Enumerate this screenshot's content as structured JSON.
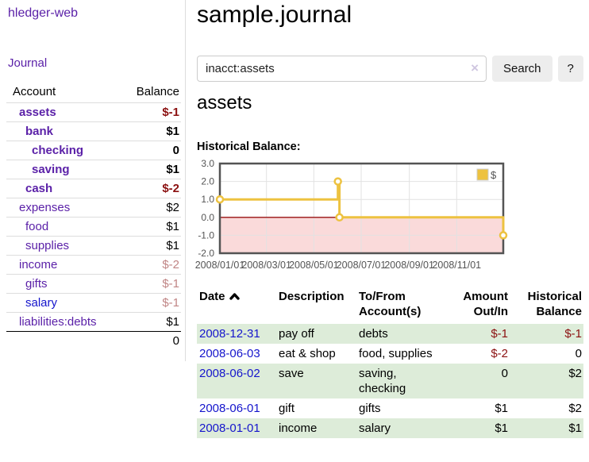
{
  "app": {
    "title": "hledger-web"
  },
  "sidebar": {
    "journal_label": "Journal",
    "accounts": {
      "header_account": "Account",
      "header_balance": "Balance",
      "rows": [
        {
          "name": "assets",
          "depth": 1,
          "in_query": true,
          "balance": "$-1",
          "balance_class": "neg"
        },
        {
          "name": "bank",
          "depth": 2,
          "in_query": true,
          "balance": "$1",
          "balance_class": ""
        },
        {
          "name": "checking",
          "depth": 3,
          "in_query": true,
          "balance": "0",
          "balance_class": ""
        },
        {
          "name": "saving",
          "depth": 3,
          "in_query": true,
          "balance": "$1",
          "balance_class": ""
        },
        {
          "name": "cash",
          "depth": 2,
          "in_query": true,
          "balance": "$-2",
          "balance_class": "neg"
        },
        {
          "name": "expenses",
          "depth": 1,
          "in_query": false,
          "balance": "$2",
          "balance_class": ""
        },
        {
          "name": "food",
          "depth": 2,
          "in_query": false,
          "balance": "$1",
          "balance_class": ""
        },
        {
          "name": "supplies",
          "depth": 2,
          "in_query": false,
          "balance": "$1",
          "balance_class": ""
        },
        {
          "name": "income",
          "depth": 1,
          "in_query": false,
          "balance": "$-2",
          "balance_class": "negfaded"
        },
        {
          "name": "gifts",
          "depth": 2,
          "in_query": false,
          "balance": "$-1",
          "balance_class": "negfaded"
        },
        {
          "name": "salary",
          "depth": 2,
          "in_query": false,
          "balance": "$-1",
          "balance_class": "negfaded",
          "link_color": "blue"
        },
        {
          "name": "liabilities:debts",
          "depth": 1,
          "in_query": false,
          "balance": "$1",
          "balance_class": ""
        }
      ],
      "total": "0"
    }
  },
  "header": {
    "title": "sample.journal"
  },
  "search": {
    "value": "inacct:assets",
    "clear_icon": "×",
    "button_label": "Search",
    "help_label": "?"
  },
  "main": {
    "account_heading": "assets",
    "chart_label": "Historical Balance:"
  },
  "chart_data": {
    "type": "line",
    "step": true,
    "series": [
      {
        "name": "$",
        "color": "#edc240",
        "points": [
          [
            "2008-01-01",
            1
          ],
          [
            "2008-06-01",
            2
          ],
          [
            "2008-06-03",
            0
          ],
          [
            "2008-12-31",
            -1
          ]
        ]
      }
    ],
    "ylim": [
      -2.0,
      3.0
    ],
    "ytick_labels": [
      "3.0",
      "2.0",
      "1.0",
      "0.0",
      "-1.0",
      "-2.0"
    ],
    "xtick_labels": [
      "2008/01/01",
      "2008/03/01",
      "2008/05/01",
      "2008/07/01",
      "2008/09/01",
      "2008/11/01"
    ],
    "xrange": [
      "2008-01-01",
      "2008-12-31"
    ],
    "legend_position": "top-right",
    "grid": true,
    "negative_region_fill": "#fadada",
    "zero_line_color": "#9a1212",
    "plot_border_color": "#545454",
    "grid_color": "#e2e2e2",
    "axis_text_color": "#545454",
    "marker_fill": "#ffffff"
  },
  "transactions": {
    "headers": {
      "date": "Date",
      "description": "Description",
      "tofrom": "To/From\nAccount(s)",
      "amount": "Amount\nOut/In",
      "balance": "Historical\nBalance"
    },
    "sort": "ascending",
    "rows": [
      {
        "date": "2008-12-31",
        "description": "pay off",
        "accounts": "debts",
        "amount": "$-1",
        "amount_class": "neg",
        "balance": "$-1",
        "balance_class": "neg"
      },
      {
        "date": "2008-06-03",
        "description": "eat & shop",
        "accounts": "food, supplies",
        "amount": "$-2",
        "amount_class": "neg",
        "balance": "0",
        "balance_class": ""
      },
      {
        "date": "2008-06-02",
        "description": "save",
        "accounts": "saving,\nchecking",
        "amount": "0",
        "amount_class": "",
        "balance": "$2",
        "balance_class": ""
      },
      {
        "date": "2008-06-01",
        "description": "gift",
        "accounts": "gifts",
        "amount": "$1",
        "amount_class": "",
        "balance": "$2",
        "balance_class": ""
      },
      {
        "date": "2008-01-01",
        "description": "income",
        "accounts": "salary",
        "amount": "$1",
        "amount_class": "",
        "balance": "$1",
        "balance_class": ""
      }
    ]
  },
  "colors": {
    "link_purple": "#5b21a8",
    "link_blue": "#1515cc",
    "negative_strong": "#8b1010",
    "negative_faded": "#c08585",
    "row_stripe_green": "#ddecd9",
    "sidebar_border": "#dddddd",
    "button_bg": "#ededed",
    "chart_gold": "#edc240"
  }
}
